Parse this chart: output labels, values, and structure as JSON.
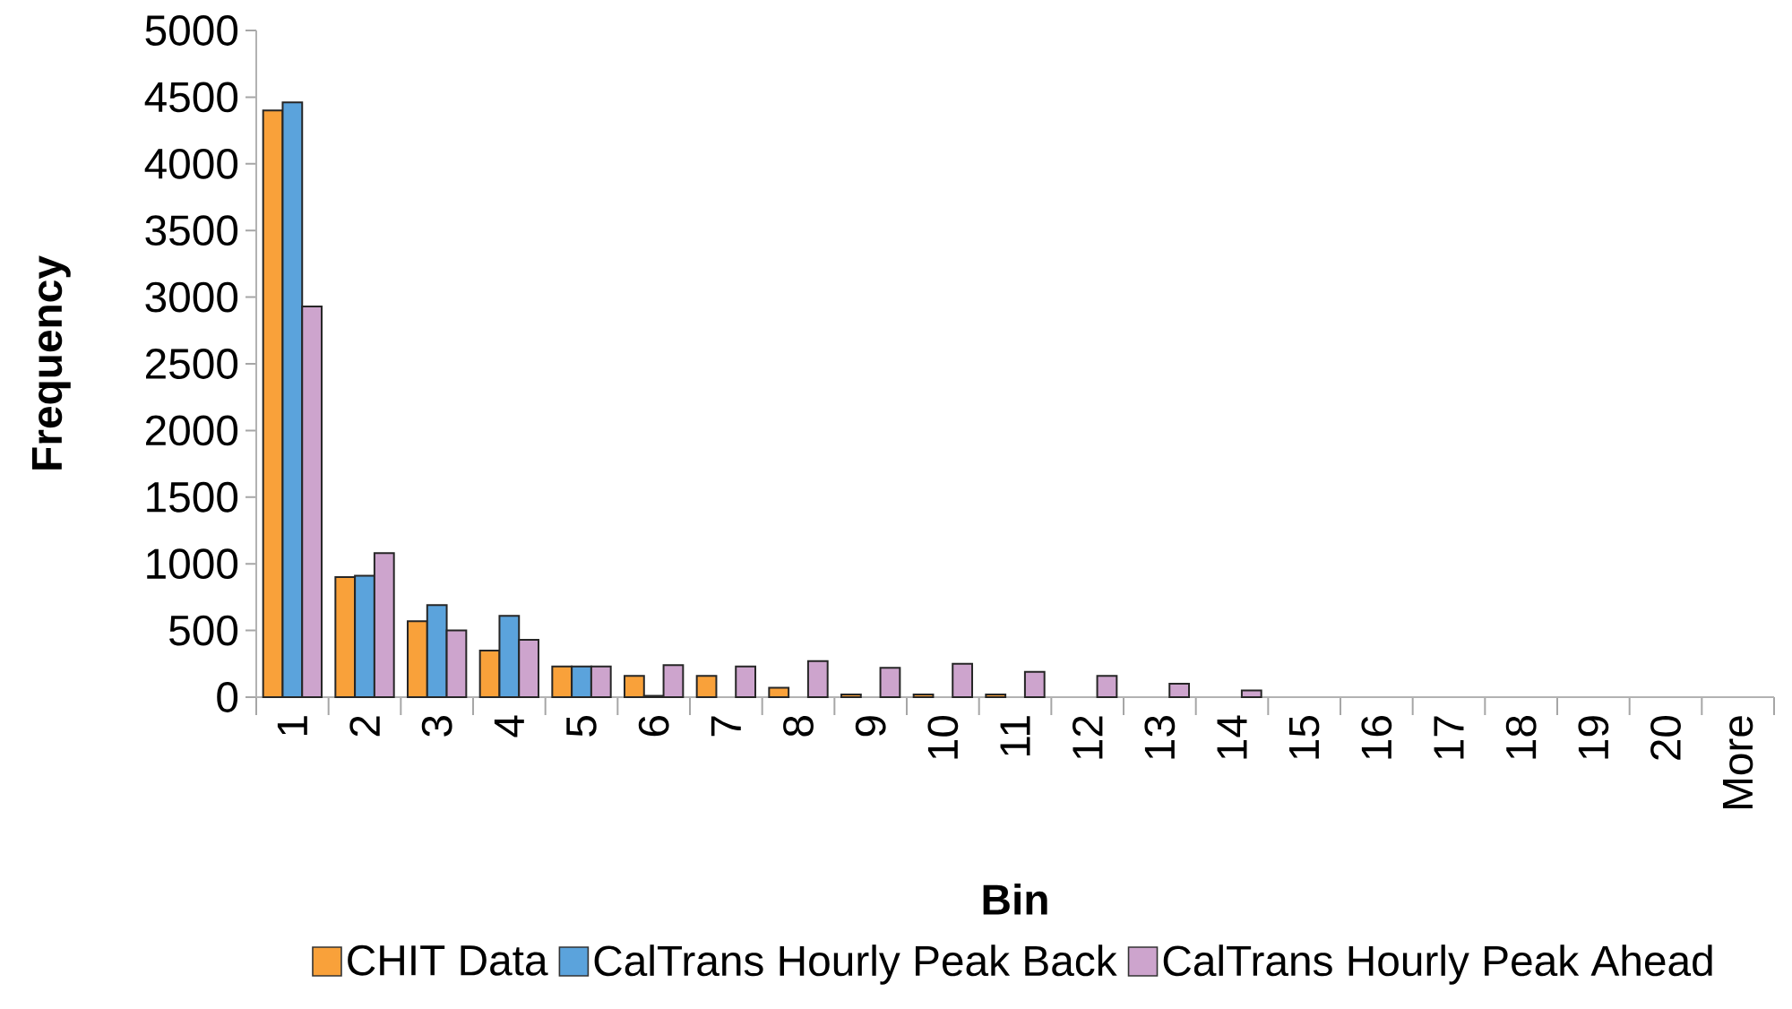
{
  "chart_data": {
    "type": "bar",
    "xlabel": "Bin",
    "ylabel": "Frequency",
    "categories": [
      "1",
      "2",
      "3",
      "4",
      "5",
      "6",
      "7",
      "8",
      "9",
      "10",
      "11",
      "12",
      "13",
      "14",
      "15",
      "16",
      "17",
      "18",
      "19",
      "20",
      "More"
    ],
    "series": [
      {
        "name": "CHIT Data",
        "color": "#f9a13a",
        "values": [
          4400,
          900,
          570,
          350,
          230,
          160,
          160,
          70,
          20,
          20,
          20,
          0,
          0,
          0,
          0,
          0,
          0,
          0,
          0,
          0,
          0
        ]
      },
      {
        "name": "CalTrans Hourly Peak Back",
        "color": "#5ba3dc",
        "values": [
          4460,
          910,
          690,
          610,
          230,
          10,
          0,
          0,
          0,
          0,
          0,
          0,
          0,
          0,
          0,
          0,
          0,
          0,
          0,
          0,
          0
        ]
      },
      {
        "name": "CalTrans Hourly Peak Ahead",
        "color": "#cda4cd",
        "values": [
          2930,
          1080,
          500,
          430,
          230,
          240,
          230,
          270,
          220,
          250,
          190,
          160,
          100,
          50,
          0,
          0,
          0,
          0,
          0,
          0,
          0
        ]
      }
    ],
    "ylim": [
      0,
      5000
    ],
    "yticks": [
      0,
      500,
      1000,
      1500,
      2000,
      2500,
      3000,
      3500,
      4000,
      4500,
      5000
    ],
    "grid": false,
    "legend": "bottom"
  }
}
